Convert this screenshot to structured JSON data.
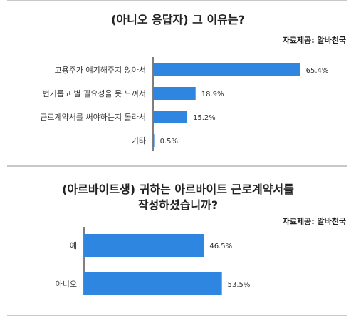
{
  "colors": {
    "bar": "#2E86E0",
    "axis": "#555555",
    "rule": "#c8c8c8"
  },
  "chart_data": [
    {
      "type": "bar",
      "orientation": "horizontal",
      "title": "(아니오 응답자) 그 이유는?",
      "source": "자료제공: 알바천국",
      "categories": [
        "고용주가 얘기해주지 않아서",
        "번거롭고 별 필요성을 못 느껴서",
        "근로계약서를 써야하는지 몰라서",
        "기타"
      ],
      "values": [
        65.4,
        18.9,
        15.2,
        0.5
      ],
      "value_labels": [
        "65.4%",
        "18.9%",
        "15.2%",
        "0.5%"
      ],
      "xlim": [
        0,
        100
      ],
      "grid": false,
      "legend": "none"
    },
    {
      "type": "bar",
      "orientation": "horizontal",
      "title_lines": [
        "(아르바이트생) 귀하는 아르바이트 근로계약서를",
        "작성하셨습니까?"
      ],
      "source": "자료제공: 알바천국",
      "categories": [
        "예",
        "아니오"
      ],
      "values": [
        46.5,
        53.5
      ],
      "value_labels": [
        "46.5%",
        "53.5%"
      ],
      "xlim": [
        0,
        100
      ],
      "grid": false,
      "legend": "none"
    }
  ]
}
